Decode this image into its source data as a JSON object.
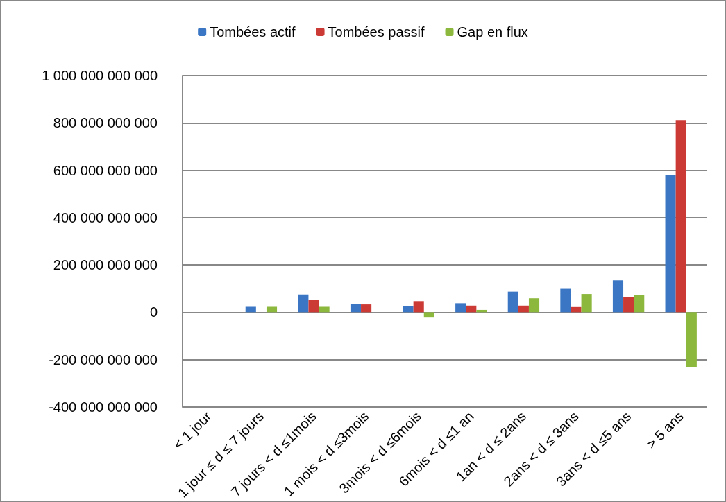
{
  "chart_data": {
    "type": "bar",
    "categories": [
      "< 1 jour",
      "1 jour ≤ d ≤ 7 jours",
      "7 jours < d ≤1mois",
      "1 mois < d ≤3mois",
      "3mois < d ≤6mois",
      "6mois < d ≤1 an",
      "1an < d ≤ 2ans",
      "2ans < d ≤ 3ans",
      "3ans < d ≤5 ans",
      "> 5 ans"
    ],
    "series": [
      {
        "name": "Tombées actif",
        "color": "#3a76c4",
        "values": [
          0,
          23000000000,
          75000000000,
          33000000000,
          27000000000,
          38000000000,
          87000000000,
          99000000000,
          135000000000,
          579000000000
        ]
      },
      {
        "name": "Tombées passif",
        "color": "#cc3a36",
        "values": [
          0,
          0,
          52000000000,
          33000000000,
          47000000000,
          28000000000,
          28000000000,
          22000000000,
          63000000000,
          812000000000
        ]
      },
      {
        "name": "Gap en flux",
        "color": "#8db83e",
        "values": [
          0,
          23000000000,
          23000000000,
          0,
          -20000000000,
          10000000000,
          59000000000,
          77000000000,
          72000000000,
          -233000000000
        ]
      }
    ],
    "ylim": [
      -400000000000,
      1000000000000
    ],
    "yticks": [
      {
        "value": -400000000000,
        "label": "-400 000 000 000"
      },
      {
        "value": -200000000000,
        "label": "-200 000 000 000"
      },
      {
        "value": 0,
        "label": "0"
      },
      {
        "value": 200000000000,
        "label": "200 000 000 000"
      },
      {
        "value": 400000000000,
        "label": "400 000 000 000"
      },
      {
        "value": 600000000000,
        "label": "600 000 000 000"
      },
      {
        "value": 800000000000,
        "label": "800 000 000 000"
      },
      {
        "value": 1000000000000,
        "label": "1 000 000 000 000"
      }
    ],
    "grid": "y",
    "legend": "top"
  }
}
